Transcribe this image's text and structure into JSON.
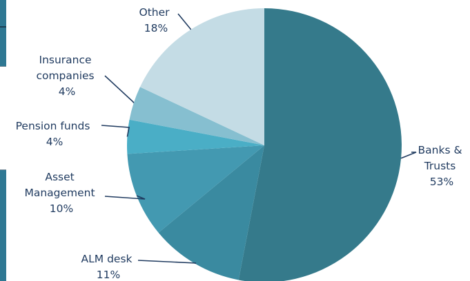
{
  "colors": {
    "text": "#1f3a5f",
    "leader": "#1f3a5f",
    "left_edge": "#2f7893"
  },
  "chart_data": {
    "type": "pie",
    "title": "",
    "start_angle_deg": 0,
    "direction": "clockwise",
    "slices": [
      {
        "label": [
          "Banks &",
          "Trusts"
        ],
        "value": 53,
        "value_label": "53%",
        "color": "#357a8b"
      },
      {
        "label": [
          "ALM desk"
        ],
        "value": 11,
        "value_label": "11%",
        "color": "#3a8aa0"
      },
      {
        "label": [
          "Asset",
          "Management"
        ],
        "value": 10,
        "value_label": "10%",
        "color": "#4399b1"
      },
      {
        "label": [
          "Pension funds"
        ],
        "value": 4,
        "value_label": "4%",
        "color": "#4aaec6"
      },
      {
        "label": [
          "Insurance",
          "companies"
        ],
        "value": 4,
        "value_label": "4%",
        "color": "#86bfd0"
      },
      {
        "label": [
          "Other"
        ],
        "value": 18,
        "value_label": "18%",
        "color": "#c4dce5"
      }
    ]
  }
}
